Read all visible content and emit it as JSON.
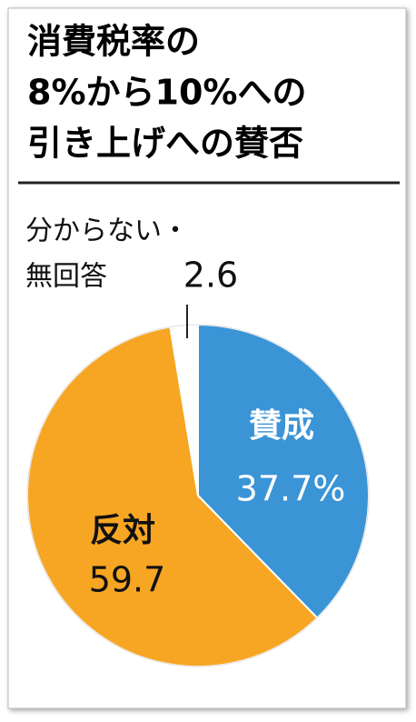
{
  "chart_data": {
    "type": "pie",
    "title": [
      "消費税率の",
      "8%から10%への",
      "引き上げへの賛否"
    ],
    "categories": [
      [
        "賛成"
      ],
      [
        "反対"
      ],
      [
        "分からない・",
        "無回答"
      ]
    ],
    "values": [
      37.7,
      59.7,
      2.6
    ],
    "value_labels": [
      "37.7%",
      "59.7",
      "2.6"
    ],
    "colors": [
      "#3a94d6",
      "#f6a623",
      "#ffffff"
    ]
  }
}
